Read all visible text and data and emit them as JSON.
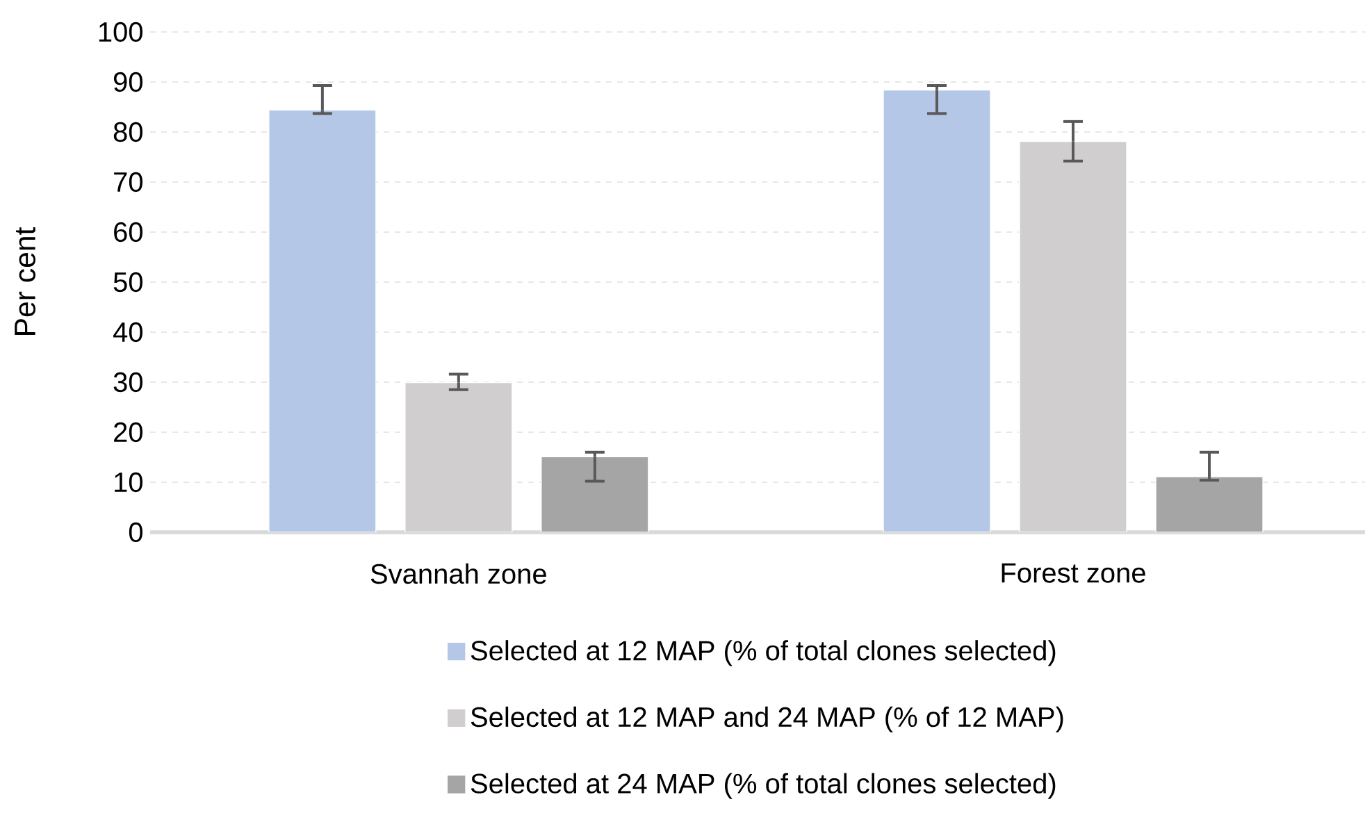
{
  "chart_data": {
    "type": "bar",
    "ylabel": "Per cent",
    "categories": [
      "Svannah zone",
      "Forest zone"
    ],
    "series": [
      {
        "name": "Selected at 12 MAP (% of total clones selected)",
        "color": "#b4c7e7",
        "values": [
          84.4,
          88.4
        ],
        "errors": [
          [
            83.7,
            89.3
          ],
          [
            83.7,
            89.3
          ]
        ]
      },
      {
        "name": "Selected at 12 MAP and 24 MAP (% of 12 MAP)",
        "color": "#d0cece",
        "values": [
          29.9,
          78.1
        ],
        "errors": [
          [
            28.5,
            31.6
          ],
          [
            74.2,
            82.1
          ]
        ]
      },
      {
        "name": "Selected at 24 MAP (% of total clones selected)",
        "color": "#a5a5a5",
        "values": [
          15.1,
          11.1
        ],
        "errors": [
          [
            10.2,
            16.0
          ],
          [
            10.4,
            16.0
          ]
        ]
      }
    ],
    "ylim": [
      0,
      100
    ],
    "yticks": [
      0,
      10,
      20,
      30,
      40,
      50,
      60,
      70,
      80,
      90,
      100
    ],
    "grid": "y",
    "legend": "bottom"
  }
}
